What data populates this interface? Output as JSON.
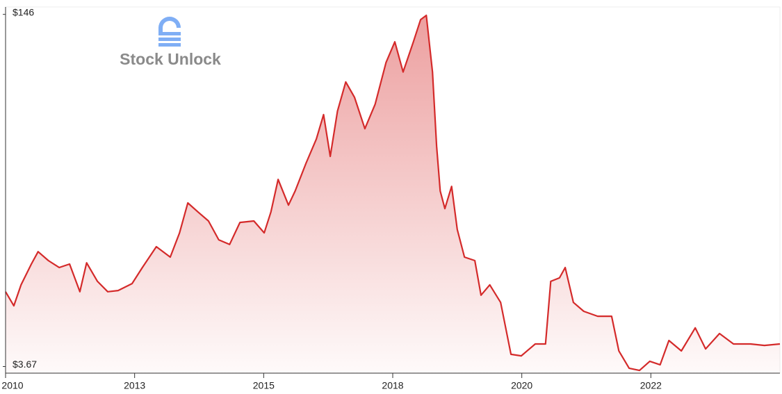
{
  "watermark": "Stock Unlock",
  "chart_data": {
    "type": "area",
    "color": "#d42a2a",
    "x": [
      2010.0,
      2010.16,
      2010.3,
      2010.5,
      2010.63,
      2010.83,
      2011.04,
      2011.24,
      2011.44,
      2011.57,
      2011.78,
      2011.98,
      2012.18,
      2012.45,
      2012.65,
      2012.92,
      2013.19,
      2013.37,
      2013.53,
      2013.73,
      2013.93,
      2014.13,
      2014.34,
      2014.54,
      2014.81,
      2015.01,
      2015.14,
      2015.28,
      2015.48,
      2015.61,
      2015.82,
      2016.02,
      2016.16,
      2016.29,
      2016.43,
      2016.59,
      2016.76,
      2016.96,
      2017.16,
      2017.37,
      2017.54,
      2017.7,
      2017.9,
      2018.04,
      2018.15,
      2018.27,
      2018.35,
      2018.42,
      2018.51,
      2018.64,
      2018.75,
      2018.89,
      2019.09,
      2019.21,
      2019.38,
      2019.59,
      2019.79,
      2019.99,
      2020.26,
      2020.46,
      2020.56,
      2020.73,
      2020.84,
      2021.0,
      2021.2,
      2021.47,
      2021.74,
      2021.88,
      2022.08,
      2022.28,
      2022.48,
      2022.68,
      2022.85,
      2023.09,
      2023.36,
      2023.56,
      2023.83,
      2024.1,
      2024.43,
      2024.7,
      2025.0
    ],
    "values": [
      33.9,
      28.2,
      36.7,
      45.1,
      50.1,
      46.5,
      43.7,
      45.1,
      33.9,
      45.6,
      38.1,
      33.9,
      34.4,
      37.2,
      43.7,
      52.1,
      47.9,
      57.7,
      69.8,
      66.1,
      62.5,
      54.9,
      53.0,
      61.9,
      62.5,
      57.7,
      66.1,
      79.3,
      68.9,
      74.6,
      85.8,
      95.6,
      105.5,
      88.6,
      106.9,
      118.7,
      112.5,
      99.8,
      109.7,
      126.5,
      134.9,
      122.7,
      134.9,
      143.9,
      145.6,
      122.7,
      92.8,
      74.6,
      67.5,
      76.5,
      59.1,
      47.9,
      46.5,
      32.5,
      36.7,
      29.6,
      8.6,
      8.0,
      12.8,
      12.8,
      38.1,
      39.5,
      43.7,
      29.6,
      26.0,
      24.0,
      24.0,
      10.0,
      3.0,
      2.1,
      5.8,
      4.4,
      14.2,
      10.0,
      19.3,
      10.8,
      17.0,
      12.8,
      12.8,
      12.2,
      12.8
    ],
    "xlim": [
      2010,
      2025
    ],
    "xticks": [
      2010,
      {
        "value": 2012.5,
        "label": "2013"
      },
      2015,
      {
        "value": 2017.5,
        "label": "2018"
      },
      2020,
      {
        "value": 2022.5,
        "label": "2022"
      }
    ],
    "ylim": [
      1,
      149
    ],
    "yticks": [
      {
        "value": 146,
        "label": "$146"
      },
      {
        "value": 3.67,
        "label": "$3.67"
      }
    ]
  }
}
